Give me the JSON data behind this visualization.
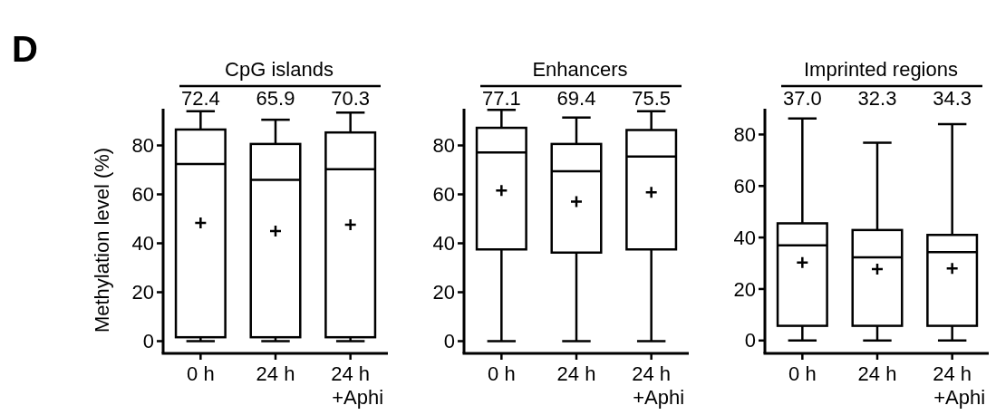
{
  "chart_data": [
    {
      "type": "box",
      "title": "CpG islands",
      "ylabel": "Methylation level (%)",
      "categories": [
        "0 h",
        "24 h",
        "24 h\n+Aphi"
      ],
      "ylim": [
        -5,
        95
      ],
      "yticks": [
        0,
        20,
        40,
        60,
        80
      ],
      "marker": "cross",
      "boxes": [
        {
          "low": 0,
          "q1": 1.6,
          "median": 72.4,
          "q3": 86.5,
          "high": 94,
          "mean": 48.3
        },
        {
          "low": 0,
          "q1": 1.6,
          "median": 65.9,
          "q3": 80.6,
          "high": 90.5,
          "mean": 45
        },
        {
          "low": 0,
          "q1": 1.6,
          "median": 70.3,
          "q3": 85.3,
          "high": 93.4,
          "mean": 47.6
        }
      ],
      "annotations": [
        "D",
        "72.4",
        "65.9",
        "70.3"
      ]
    },
    {
      "type": "box",
      "title": "Enhancers",
      "categories": [
        "0 h",
        "24 h",
        "24 h\n+Aphi"
      ],
      "ylim": [
        -5,
        95
      ],
      "yticks": [
        0,
        20,
        40,
        60,
        80
      ],
      "marker": "cross",
      "boxes": [
        {
          "low": 0,
          "q1": 37.5,
          "median": 77.1,
          "q3": 87.2,
          "high": 94.5,
          "mean": 61.6
        },
        {
          "low": 0,
          "q1": 36.2,
          "median": 69.4,
          "q3": 80.6,
          "high": 91.4,
          "mean": 57
        },
        {
          "low": 0,
          "q1": 37.5,
          "median": 75.5,
          "q3": 86.3,
          "high": 94,
          "mean": 60.8
        }
      ],
      "annotations": [
        "77.1",
        "69.4",
        "75.5"
      ]
    },
    {
      "type": "box",
      "title": "Imprinted regions",
      "categories": [
        "0 h",
        "24 h",
        "24 h\n+Aphi"
      ],
      "ylim": [
        -5,
        90
      ],
      "yticks": [
        0,
        20,
        40,
        60,
        80
      ],
      "marker": "cross",
      "boxes": [
        {
          "low": 0,
          "q1": 5.7,
          "median": 37.0,
          "q3": 45.5,
          "high": 86.2,
          "mean": 30.3
        },
        {
          "low": 0,
          "q1": 5.7,
          "median": 32.3,
          "q3": 42.9,
          "high": 76.8,
          "mean": 27.7
        },
        {
          "low": 0,
          "q1": 5.7,
          "median": 34.3,
          "q3": 41,
          "high": 84,
          "mean": 28
        }
      ],
      "annotations": [
        "37.0",
        "32.3",
        "34.3"
      ]
    }
  ]
}
